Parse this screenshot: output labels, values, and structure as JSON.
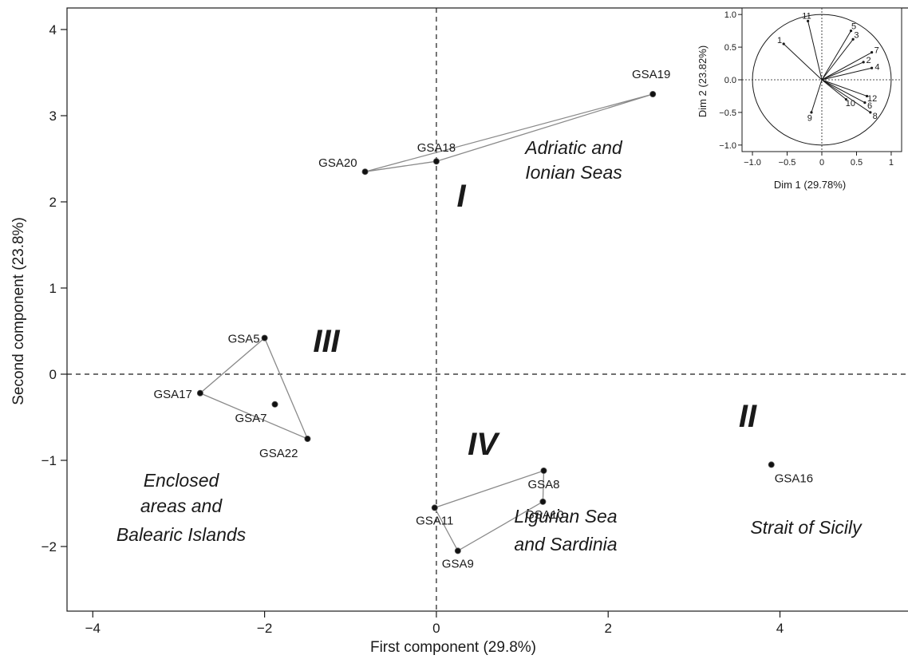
{
  "chart_data": {
    "type": "scatter",
    "xlabel": "First component (29.8%)",
    "ylabel": "Second component (23.8%)",
    "xlim": [
      -4.3,
      5.5
    ],
    "ylim": [
      -2.75,
      4.25
    ],
    "xticks": [
      -4,
      -2,
      0,
      2,
      4
    ],
    "xtick_labels": [
      "−4",
      "−2",
      "0",
      "2",
      "4"
    ],
    "yticks": [
      -2,
      -1,
      0,
      1,
      2,
      3,
      4
    ],
    "ytick_labels": [
      "−2",
      "−1",
      "0",
      "1",
      "2",
      "3",
      "4"
    ],
    "reference_lines": {
      "x": 0,
      "y": 0,
      "style": "dashed"
    },
    "points": [
      {
        "label": "GSA19",
        "x": 2.52,
        "y": 3.25
      },
      {
        "label": "GSA18",
        "x": 0.0,
        "y": 2.47
      },
      {
        "label": "GSA20",
        "x": -0.83,
        "y": 2.35
      },
      {
        "label": "GSA5",
        "x": -2.0,
        "y": 0.42
      },
      {
        "label": "GSA17",
        "x": -2.75,
        "y": -0.22
      },
      {
        "label": "GSA7",
        "x": -1.88,
        "y": -0.35
      },
      {
        "label": "GSA22",
        "x": -1.5,
        "y": -0.75
      },
      {
        "label": "GSA8",
        "x": 1.25,
        "y": -1.12
      },
      {
        "label": "GSA10",
        "x": 1.24,
        "y": -1.48
      },
      {
        "label": "GSA11",
        "x": -0.02,
        "y": -1.55
      },
      {
        "label": "GSA9",
        "x": 0.25,
        "y": -2.05
      },
      {
        "label": "GSA16",
        "x": 3.9,
        "y": -1.05
      }
    ],
    "hulls": [
      {
        "group": "I",
        "members": [
          "GSA20",
          "GSA19",
          "GSA18"
        ]
      },
      {
        "group": "III",
        "members": [
          "GSA17",
          "GSA5",
          "GSA22"
        ]
      },
      {
        "group": "IV",
        "members": [
          "GSA11",
          "GSA8",
          "GSA10",
          "GSA9"
        ]
      }
    ],
    "groups": [
      {
        "numeral": "I",
        "region": [
          "Adriatic and",
          "Ionian Seas"
        ]
      },
      {
        "numeral": "II",
        "region": [
          "Strait of Sicily"
        ]
      },
      {
        "numeral": "III",
        "region": [
          "Enclosed",
          "areas and",
          "Balearic Islands"
        ]
      },
      {
        "numeral": "IV",
        "region": [
          "Ligurian Sea",
          "and Sardinia"
        ]
      }
    ],
    "inset": {
      "type": "correlation_circle",
      "xlabel": "Dim 1 (29.78%)",
      "ylabel": "Dim 2 (23.82%)",
      "xlim": [
        -1.15,
        1.15
      ],
      "ylim": [
        -1.1,
        1.1
      ],
      "xticks": [
        -1.0,
        -0.5,
        0,
        0.5,
        1
      ],
      "xtick_labels": [
        "−1.0",
        "−0.5",
        "0",
        "0.5",
        "1"
      ],
      "yticks": [
        -1.0,
        -0.5,
        0.0,
        0.5,
        1.0
      ],
      "ytick_labels": [
        "−1.0",
        "−0.5",
        "0.0",
        "0.5",
        "1.0"
      ],
      "vectors": [
        {
          "label": "1",
          "x": -0.55,
          "y": 0.55
        },
        {
          "label": "11",
          "x": -0.2,
          "y": 0.9
        },
        {
          "label": "5",
          "x": 0.42,
          "y": 0.75
        },
        {
          "label": "3",
          "x": 0.45,
          "y": 0.62
        },
        {
          "label": "7",
          "x": 0.72,
          "y": 0.42
        },
        {
          "label": "2",
          "x": 0.6,
          "y": 0.27
        },
        {
          "label": "4",
          "x": 0.72,
          "y": 0.18
        },
        {
          "label": "12",
          "x": 0.65,
          "y": -0.25
        },
        {
          "label": "6",
          "x": 0.62,
          "y": -0.35
        },
        {
          "label": "10",
          "x": 0.35,
          "y": -0.3
        },
        {
          "label": "8",
          "x": 0.7,
          "y": -0.5
        },
        {
          "label": "9",
          "x": -0.15,
          "y": -0.5
        }
      ]
    }
  }
}
